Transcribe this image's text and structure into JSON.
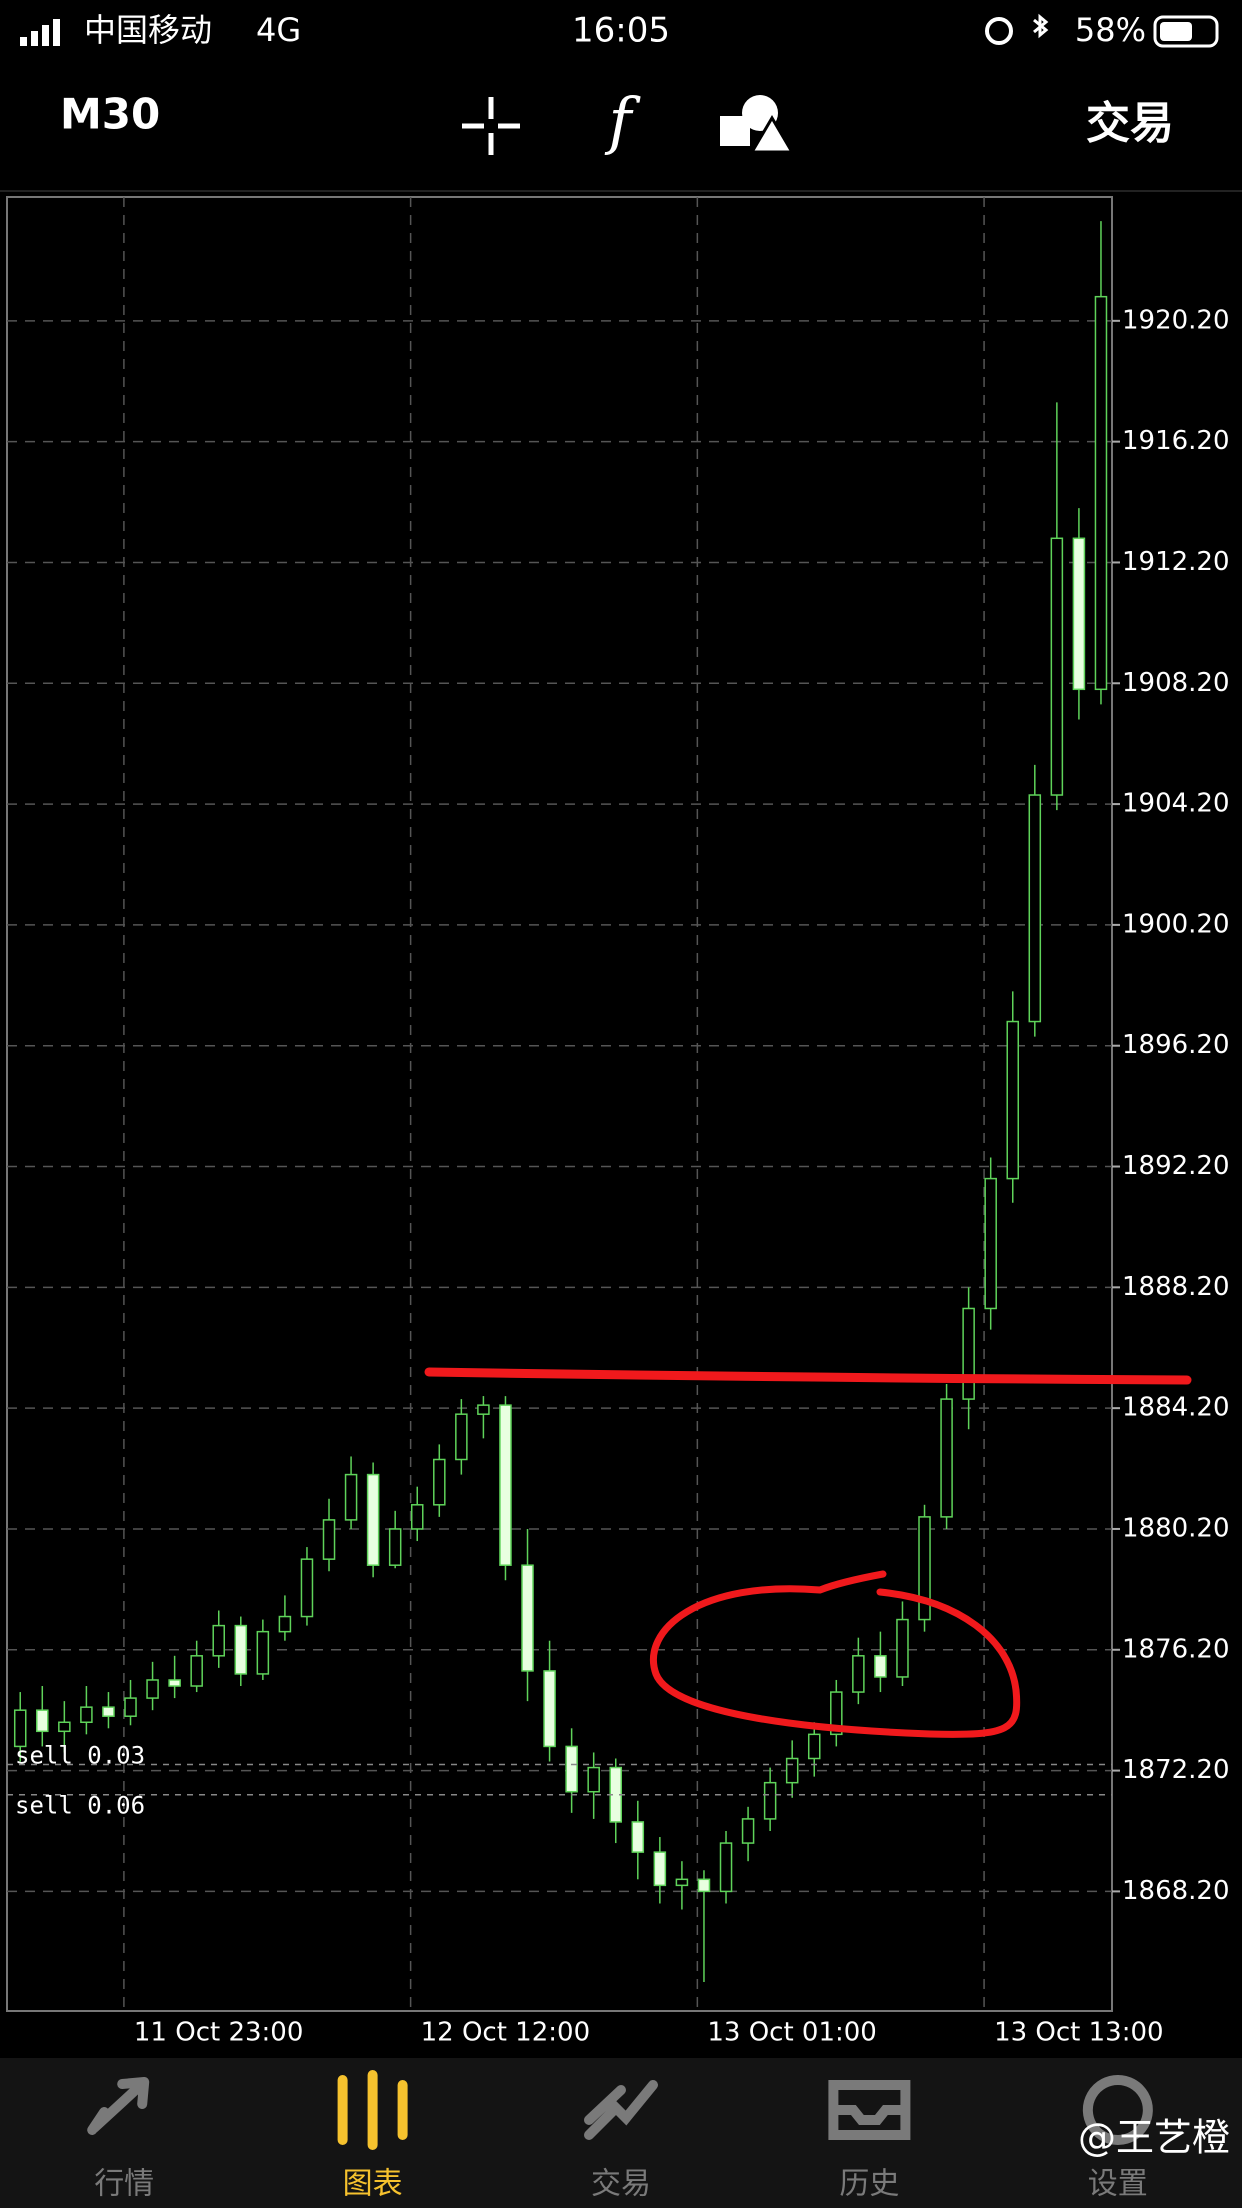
{
  "status_bar": {
    "carrier": "中国移动",
    "network": "4G",
    "time": "16:05",
    "battery": "58%"
  },
  "toolbar": {
    "timeframe": "M30",
    "trade_button": "交易"
  },
  "chart_data": {
    "type": "candlestick",
    "x": [
      0,
      1,
      2,
      3,
      4,
      5,
      6,
      7,
      8,
      9,
      10,
      11,
      12,
      13,
      14,
      15,
      16,
      17,
      18,
      19,
      20,
      21,
      22,
      23,
      24,
      25,
      26,
      27,
      28,
      29,
      30,
      31,
      32,
      33,
      34,
      35,
      36,
      37,
      38,
      39,
      40,
      41,
      42,
      43,
      44,
      45,
      46,
      47,
      48,
      49
    ],
    "open": [
      1873.0,
      1874.2,
      1873.5,
      1873.8,
      1874.3,
      1874.0,
      1874.6,
      1875.2,
      1875.0,
      1876.0,
      1877.0,
      1875.4,
      1876.8,
      1877.3,
      1879.2,
      1880.5,
      1882.0,
      1879.0,
      1880.2,
      1881.0,
      1882.5,
      1884.0,
      1884.3,
      1879.0,
      1875.5,
      1873.0,
      1871.5,
      1872.3,
      1870.5,
      1869.5,
      1868.4,
      1868.6,
      1868.2,
      1869.8,
      1870.6,
      1871.8,
      1872.6,
      1873.4,
      1874.8,
      1876.0,
      1875.3,
      1877.2,
      1880.6,
      1884.5,
      1887.5,
      1891.8,
      1897.0,
      1904.5,
      1913.0,
      1908.0
    ],
    "high": [
      1874.8,
      1875.0,
      1874.5,
      1875.0,
      1874.8,
      1875.2,
      1875.8,
      1876.0,
      1876.5,
      1877.5,
      1877.3,
      1877.2,
      1878.0,
      1879.6,
      1881.2,
      1882.6,
      1882.4,
      1880.8,
      1881.6,
      1883.0,
      1884.5,
      1884.6,
      1884.6,
      1880.2,
      1876.5,
      1873.6,
      1872.8,
      1872.6,
      1871.2,
      1870.0,
      1869.2,
      1868.9,
      1870.2,
      1871.0,
      1872.3,
      1873.2,
      1873.8,
      1875.2,
      1876.6,
      1876.8,
      1877.8,
      1881.0,
      1885.0,
      1888.2,
      1892.5,
      1898.0,
      1905.5,
      1917.5,
      1914.0,
      1923.5
    ],
    "low": [
      1872.5,
      1873.0,
      1872.8,
      1873.4,
      1873.6,
      1873.7,
      1874.2,
      1874.6,
      1874.8,
      1875.6,
      1875.0,
      1875.2,
      1876.5,
      1877.0,
      1878.8,
      1880.2,
      1878.6,
      1878.9,
      1879.8,
      1880.6,
      1882.0,
      1883.2,
      1878.5,
      1874.5,
      1872.5,
      1870.8,
      1870.6,
      1869.8,
      1868.6,
      1867.8,
      1867.6,
      1865.2,
      1867.8,
      1869.2,
      1870.2,
      1871.3,
      1872.0,
      1873.0,
      1874.4,
      1874.8,
      1875.0,
      1876.8,
      1880.2,
      1883.5,
      1886.8,
      1891.0,
      1896.5,
      1904.0,
      1907.0,
      1907.5
    ],
    "close": [
      1874.2,
      1873.5,
      1873.8,
      1874.3,
      1874.0,
      1874.6,
      1875.2,
      1875.0,
      1876.0,
      1877.0,
      1875.4,
      1876.8,
      1877.3,
      1879.2,
      1880.5,
      1882.0,
      1879.0,
      1880.2,
      1881.0,
      1882.5,
      1884.0,
      1884.3,
      1879.0,
      1875.5,
      1873.0,
      1871.5,
      1872.3,
      1870.5,
      1869.5,
      1868.4,
      1868.6,
      1868.2,
      1869.8,
      1870.6,
      1871.8,
      1872.6,
      1873.4,
      1874.8,
      1876.0,
      1875.3,
      1877.2,
      1880.6,
      1884.5,
      1887.5,
      1891.8,
      1897.0,
      1904.5,
      1913.0,
      1908.0,
      1921.0
    ],
    "xlim": [
      -0.6,
      49.5
    ],
    "xticks": [
      {
        "value": 4.7,
        "label": "11 Oct 23:00"
      },
      {
        "value": 17.7,
        "label": "12 Oct 12:00"
      },
      {
        "value": 30.7,
        "label": "13 Oct 01:00"
      },
      {
        "value": 43.7,
        "label": "13 Oct 13:00"
      }
    ],
    "ylim": [
      1864.24,
      1924.3
    ],
    "yticks": [
      {
        "value": 1868.2,
        "label": "1868.20"
      },
      {
        "value": 1872.2,
        "label": "1872.20"
      },
      {
        "value": 1876.2,
        "label": "1876.20"
      },
      {
        "value": 1880.2,
        "label": "1880.20"
      },
      {
        "value": 1884.2,
        "label": "1884.20"
      },
      {
        "value": 1888.2,
        "label": "1888.20"
      },
      {
        "value": 1892.2,
        "label": "1892.20"
      },
      {
        "value": 1896.2,
        "label": "1896.20"
      },
      {
        "value": 1900.2,
        "label": "1900.20"
      },
      {
        "value": 1904.2,
        "label": "1904.20"
      },
      {
        "value": 1908.2,
        "label": "1908.20"
      },
      {
        "value": 1912.2,
        "label": "1912.20"
      },
      {
        "value": 1916.2,
        "label": "1916.20"
      },
      {
        "value": 1920.2,
        "label": "1920.20"
      }
    ],
    "orders": [
      {
        "label": "sell 0.03",
        "price": 1872.4
      },
      {
        "label": "sell 0.06",
        "price": 1871.4
      }
    ],
    "grid": true,
    "up_color": "#000000",
    "down_color": "#e8ffe0",
    "line_color": "#5fd35a"
  },
  "tab_bar": {
    "tabs": [
      "行情",
      "图表",
      "交易",
      "历史",
      "设置"
    ],
    "active": 1
  },
  "watermark": "@王艺橙"
}
